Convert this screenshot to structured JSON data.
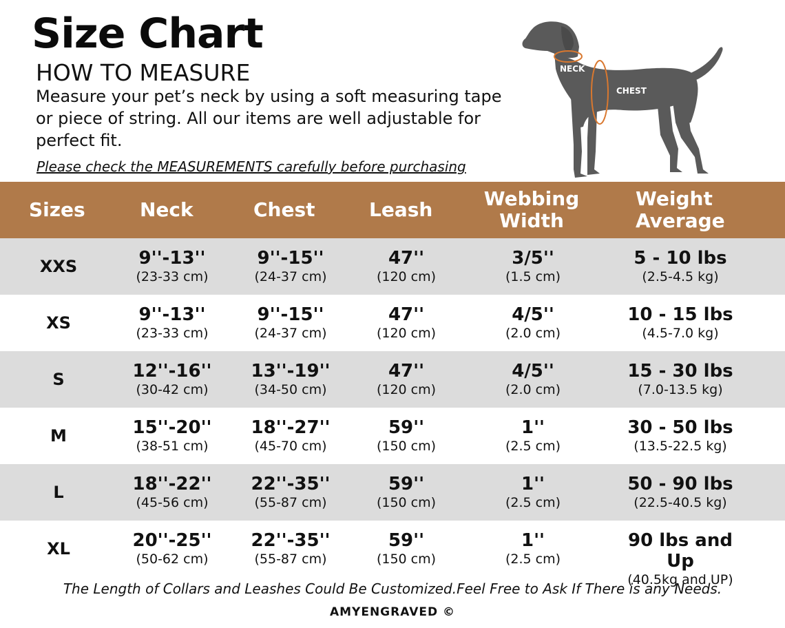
{
  "title": "Size Chart",
  "subtitle": "HOW TO MEASURE",
  "intro": "Measure your pet’s neck by using a soft measuring tape or piece of string. All our items are well adjustable for perfect fit.",
  "notice": "Please check the MEASUREMENTS carefully before purchasing",
  "diagram": {
    "neck_label": "NECK",
    "chest_label": "CHEST",
    "colors": {
      "dog": "#5a5a5a",
      "measure_line": "#d9782f"
    }
  },
  "table": {
    "headers": {
      "sizes": "Sizes",
      "neck": "Neck",
      "chest": "Chest",
      "leash": "Leash",
      "webbing_line1": "Webbing",
      "webbing_line2": "Width",
      "weight_line1": "Weight",
      "weight_line2": "Average"
    },
    "rows": [
      {
        "size": "XXS",
        "neck": "9''-13''",
        "neck_cm": "(23-33 cm)",
        "chest": "9''-15''",
        "chest_cm": "(24-37 cm)",
        "leash": "47''",
        "leash_cm": "(120 cm)",
        "webbing": "3/5''",
        "webbing_cm": "(1.5 cm)",
        "weight": "5 - 10 lbs",
        "weight_kg": "(2.5-4.5 kg)"
      },
      {
        "size": "XS",
        "neck": "9''-13''",
        "neck_cm": "(23-33 cm)",
        "chest": "9''-15''",
        "chest_cm": "(24-37 cm)",
        "leash": "47''",
        "leash_cm": "(120 cm)",
        "webbing": "4/5''",
        "webbing_cm": "(2.0 cm)",
        "weight": "10 - 15 lbs",
        "weight_kg": "(4.5-7.0 kg)"
      },
      {
        "size": "S",
        "neck": "12''-16''",
        "neck_cm": "(30-42 cm)",
        "chest": "13''-19''",
        "chest_cm": "(34-50 cm)",
        "leash": "47''",
        "leash_cm": "(120 cm)",
        "webbing": "4/5''",
        "webbing_cm": "(2.0 cm)",
        "weight": "15 - 30 lbs",
        "weight_kg": "(7.0-13.5 kg)"
      },
      {
        "size": "M",
        "neck": "15''-20''",
        "neck_cm": "(38-51 cm)",
        "chest": "18''-27''",
        "chest_cm": "(45-70 cm)",
        "leash": "59''",
        "leash_cm": "(150 cm)",
        "webbing": "1''",
        "webbing_cm": "(2.5 cm)",
        "weight": "30 - 50 lbs",
        "weight_kg": "(13.5-22.5 kg)"
      },
      {
        "size": "L",
        "neck": "18''-22''",
        "neck_cm": "(45-56 cm)",
        "chest": "22''-35''",
        "chest_cm": "(55-87 cm)",
        "leash": "59''",
        "leash_cm": "(150 cm)",
        "webbing": "1''",
        "webbing_cm": "(2.5 cm)",
        "weight": "50 - 90 lbs",
        "weight_kg": "(22.5-40.5 kg)"
      },
      {
        "size": "XL",
        "neck": "20''-25''",
        "neck_cm": "(50-62 cm)",
        "chest": "22''-35''",
        "chest_cm": "(55-87 cm)",
        "leash": "59''",
        "leash_cm": "(150 cm)",
        "webbing": "1''",
        "webbing_cm": "(2.5 cm)",
        "weight": "90 lbs and Up",
        "weight_kg": "(40.5kg and UP)"
      }
    ]
  },
  "footer_note": "The Length of Collars and Leashes Could Be Customized.Feel Free to Ask If There is any Needs.",
  "brand": "AMYENGRAVED ©",
  "colors": {
    "header_bg": "#b07a4a",
    "row_shade": "#dcdcdc",
    "text": "#111111"
  }
}
